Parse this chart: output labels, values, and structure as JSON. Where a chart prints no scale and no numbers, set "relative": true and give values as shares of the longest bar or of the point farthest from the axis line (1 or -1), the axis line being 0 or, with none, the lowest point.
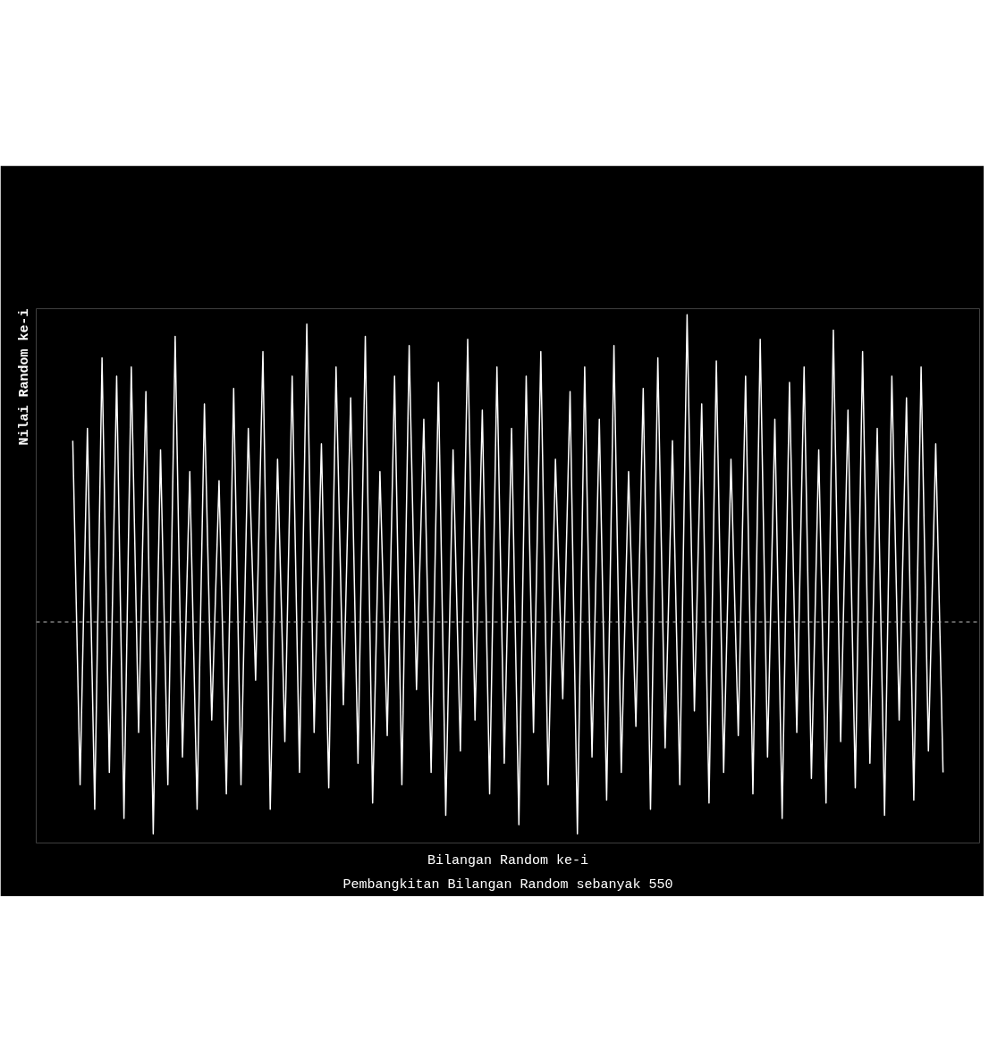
{
  "chart_data": {
    "type": "line",
    "relative": true,
    "title": "Pembangkitan Bilangan Random sebanyak 550",
    "xlabel": "Bilangan Random ke-i",
    "ylabel": "Nilai Random ke-i",
    "categories": [
      null,
      null,
      null,
      null,
      null,
      null,
      null,
      null,
      null,
      null,
      null,
      null,
      null,
      null,
      null,
      null,
      null,
      null,
      null,
      null,
      null,
      null,
      null,
      null,
      null,
      null,
      null,
      null,
      null,
      null,
      null,
      null,
      null,
      null,
      null,
      null,
      null,
      null,
      null,
      null,
      null,
      null,
      null,
      null,
      null,
      null,
      null,
      null,
      null,
      null,
      null,
      null,
      null,
      null,
      null,
      null,
      null,
      null,
      null,
      null,
      null,
      null,
      null,
      null,
      null,
      null,
      null,
      null,
      null,
      null,
      null,
      null,
      null,
      null,
      null,
      null,
      null,
      null,
      null,
      null,
      null,
      null,
      null,
      null,
      null,
      null,
      null,
      null,
      null,
      null,
      null,
      null,
      null,
      null,
      null,
      null,
      null,
      null,
      null,
      null,
      null,
      null,
      null,
      null,
      null,
      null,
      null,
      null,
      null,
      null,
      null,
      null,
      null,
      null,
      null,
      null,
      null,
      null,
      null,
      null
    ],
    "series": [
      {
        "color": "#ffffff",
        "values": [
          0.59,
          -0.53,
          0.63,
          -0.61,
          0.86,
          -0.49,
          0.8,
          -0.64,
          0.83,
          -0.36,
          0.75,
          -0.69,
          0.56,
          -0.53,
          0.93,
          -0.44,
          0.49,
          -0.61,
          0.71,
          -0.32,
          0.46,
          -0.56,
          0.76,
          -0.53,
          0.63,
          -0.19,
          0.88,
          -0.61,
          0.53,
          -0.39,
          0.8,
          -0.49,
          0.97,
          -0.36,
          0.58,
          -0.54,
          0.83,
          -0.27,
          0.73,
          -0.46,
          0.93,
          -0.59,
          0.49,
          -0.37,
          0.8,
          -0.53,
          0.9,
          -0.22,
          0.66,
          -0.49,
          0.78,
          -0.63,
          0.56,
          -0.42,
          0.92,
          -0.32,
          0.69,
          -0.56,
          0.83,
          -0.46,
          0.63,
          -0.66,
          0.8,
          -0.36,
          0.88,
          -0.53,
          0.53,
          -0.25,
          0.75,
          -0.69,
          0.83,
          -0.44,
          0.66,
          -0.58,
          0.9,
          -0.49,
          0.49,
          -0.34,
          0.76,
          -0.61,
          0.86,
          -0.41,
          0.59,
          -0.53,
          1.0,
          -0.29,
          0.71,
          -0.59,
          0.85,
          -0.49,
          0.53,
          -0.37,
          0.8,
          -0.56,
          0.92,
          -0.44,
          0.66,
          -0.64,
          0.78,
          -0.36,
          0.83,
          -0.51,
          0.56,
          -0.59,
          0.95,
          -0.39,
          0.69,
          -0.54,
          0.88,
          -0.46,
          0.63,
          -0.63,
          0.8,
          -0.32,
          0.73,
          -0.58,
          0.83,
          -0.42,
          0.58,
          -0.49
        ]
      }
    ],
    "ref_lines": [
      {
        "axis": "y",
        "value": 0,
        "color": "#c0c0c0",
        "line_style": "dashed"
      }
    ]
  }
}
